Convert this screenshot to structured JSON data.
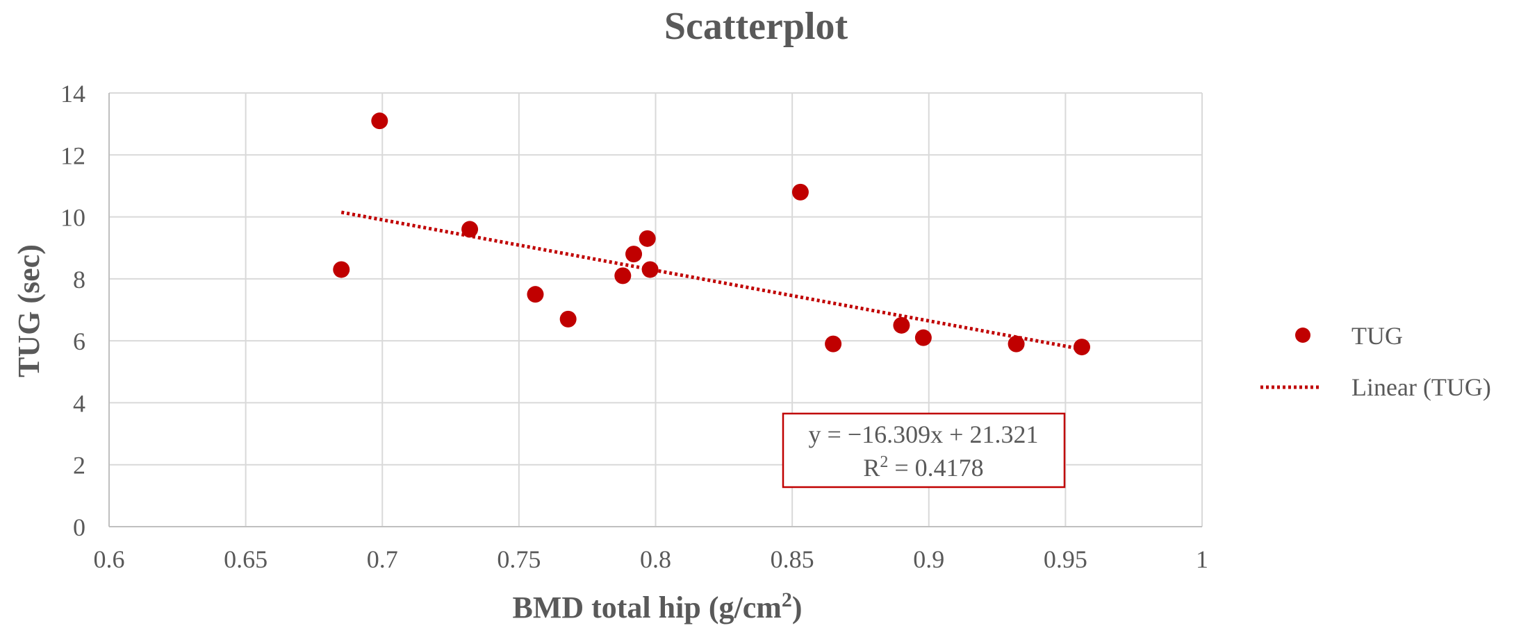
{
  "chart_data": {
    "type": "scatter",
    "title": "Scatterplot",
    "xlabel_main": "BMD total hip (g/cm",
    "xlabel_sup": "2",
    "xlabel_end": ")",
    "ylabel": "TUG (sec)",
    "xlim": [
      0.6,
      1.0
    ],
    "ylim": [
      0,
      14
    ],
    "x_ticks": [
      0.6,
      0.65,
      0.7,
      0.75,
      0.8,
      0.85,
      0.9,
      0.95,
      1
    ],
    "x_tick_labels": [
      "0.6",
      "0.65",
      "0.7",
      "0.75",
      "0.8",
      "0.85",
      "0.9",
      "0.95",
      "1"
    ],
    "y_ticks": [
      0,
      2,
      4,
      6,
      8,
      10,
      12,
      14
    ],
    "y_tick_labels": [
      "0",
      "2",
      "4",
      "6",
      "8",
      "10",
      "12",
      "14"
    ],
    "grid": true,
    "legend_position": "right",
    "series": [
      {
        "name": "TUG",
        "color": "#C00000",
        "x": [
          0.685,
          0.699,
          0.732,
          0.756,
          0.768,
          0.788,
          0.792,
          0.797,
          0.798,
          0.853,
          0.865,
          0.89,
          0.898,
          0.932,
          0.956
        ],
        "y": [
          8.3,
          13.1,
          9.6,
          7.5,
          6.7,
          8.1,
          8.8,
          9.3,
          8.3,
          10.8,
          5.9,
          6.5,
          6.1,
          5.9,
          5.8
        ]
      }
    ],
    "trendline": {
      "name": "Linear (TUG)",
      "type": "linear",
      "slope": -16.309,
      "intercept": 21.321,
      "x_range": [
        0.685,
        0.956
      ],
      "color": "#C00000",
      "style": "dotted"
    },
    "equation_label": "y = −16.309x + 21.321",
    "r2_label_main": "R",
    "r2_label_sup": "2",
    "r2_label_end": " = 0.4178"
  },
  "legend": {
    "items": [
      {
        "label": "TUG",
        "symbol": "marker"
      },
      {
        "label": "Linear (TUG)",
        "symbol": "dotted-line"
      }
    ]
  }
}
